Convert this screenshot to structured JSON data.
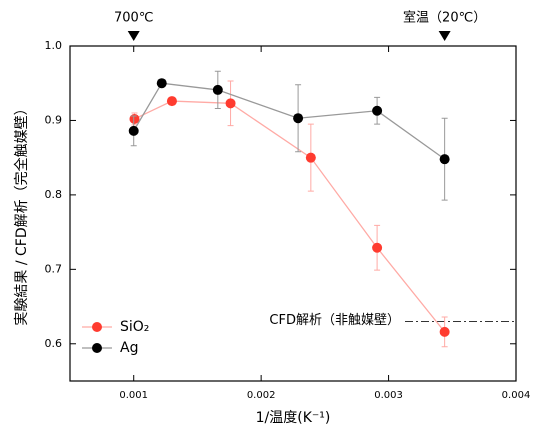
{
  "chart_data": {
    "type": "line",
    "xlabel": "1/温度(K⁻¹)",
    "ylabel": "実験結果 / CFD解析（完全触媒壁）",
    "xlim": [
      0.0005,
      0.004
    ],
    "xticks": [
      0.001,
      0.002,
      0.003,
      0.004
    ],
    "ylim": [
      0.55,
      1.0
    ],
    "yticks": [
      {
        "value": 0.6,
        "label": "0.6"
      },
      {
        "value": 0.7,
        "label": "0.7"
      },
      {
        "value": 0.8,
        "label": "0.8"
      },
      {
        "value": 0.9,
        "label": "0.9"
      },
      {
        "value": 1,
        "label": "1.0"
      }
    ],
    "legend": "lower left",
    "series": [
      {
        "name": "SiO₂",
        "color": "#ff3b2f",
        "line_color": "#ffaaa5",
        "x": [
          0.001006,
          0.0013,
          0.00176,
          0.00239,
          0.00291,
          0.00344
        ],
        "values": [
          0.902,
          0.926,
          0.923,
          0.85,
          0.729,
          0.616
        ],
        "errors": [
          0.008,
          0.005,
          0.03,
          0.045,
          0.03,
          0.02
        ]
      },
      {
        "name": "Ag",
        "color": "#000000",
        "line_color": "#999999",
        "x": [
          0.001,
          0.00122,
          0.00166,
          0.00229,
          0.00291,
          0.00344
        ],
        "values": [
          0.886,
          0.95,
          0.941,
          0.903,
          0.913,
          0.848
        ],
        "errors": [
          0.02,
          0.005,
          0.025,
          0.045,
          0.018,
          0.055
        ]
      }
    ],
    "annotations": [
      {
        "text": "700℃",
        "x": 0.001
      },
      {
        "text": "室温（20℃）",
        "x": 0.00344
      }
    ],
    "reference_line": {
      "text": "CFD解析（非触媒壁）",
      "y": 0.63
    }
  }
}
